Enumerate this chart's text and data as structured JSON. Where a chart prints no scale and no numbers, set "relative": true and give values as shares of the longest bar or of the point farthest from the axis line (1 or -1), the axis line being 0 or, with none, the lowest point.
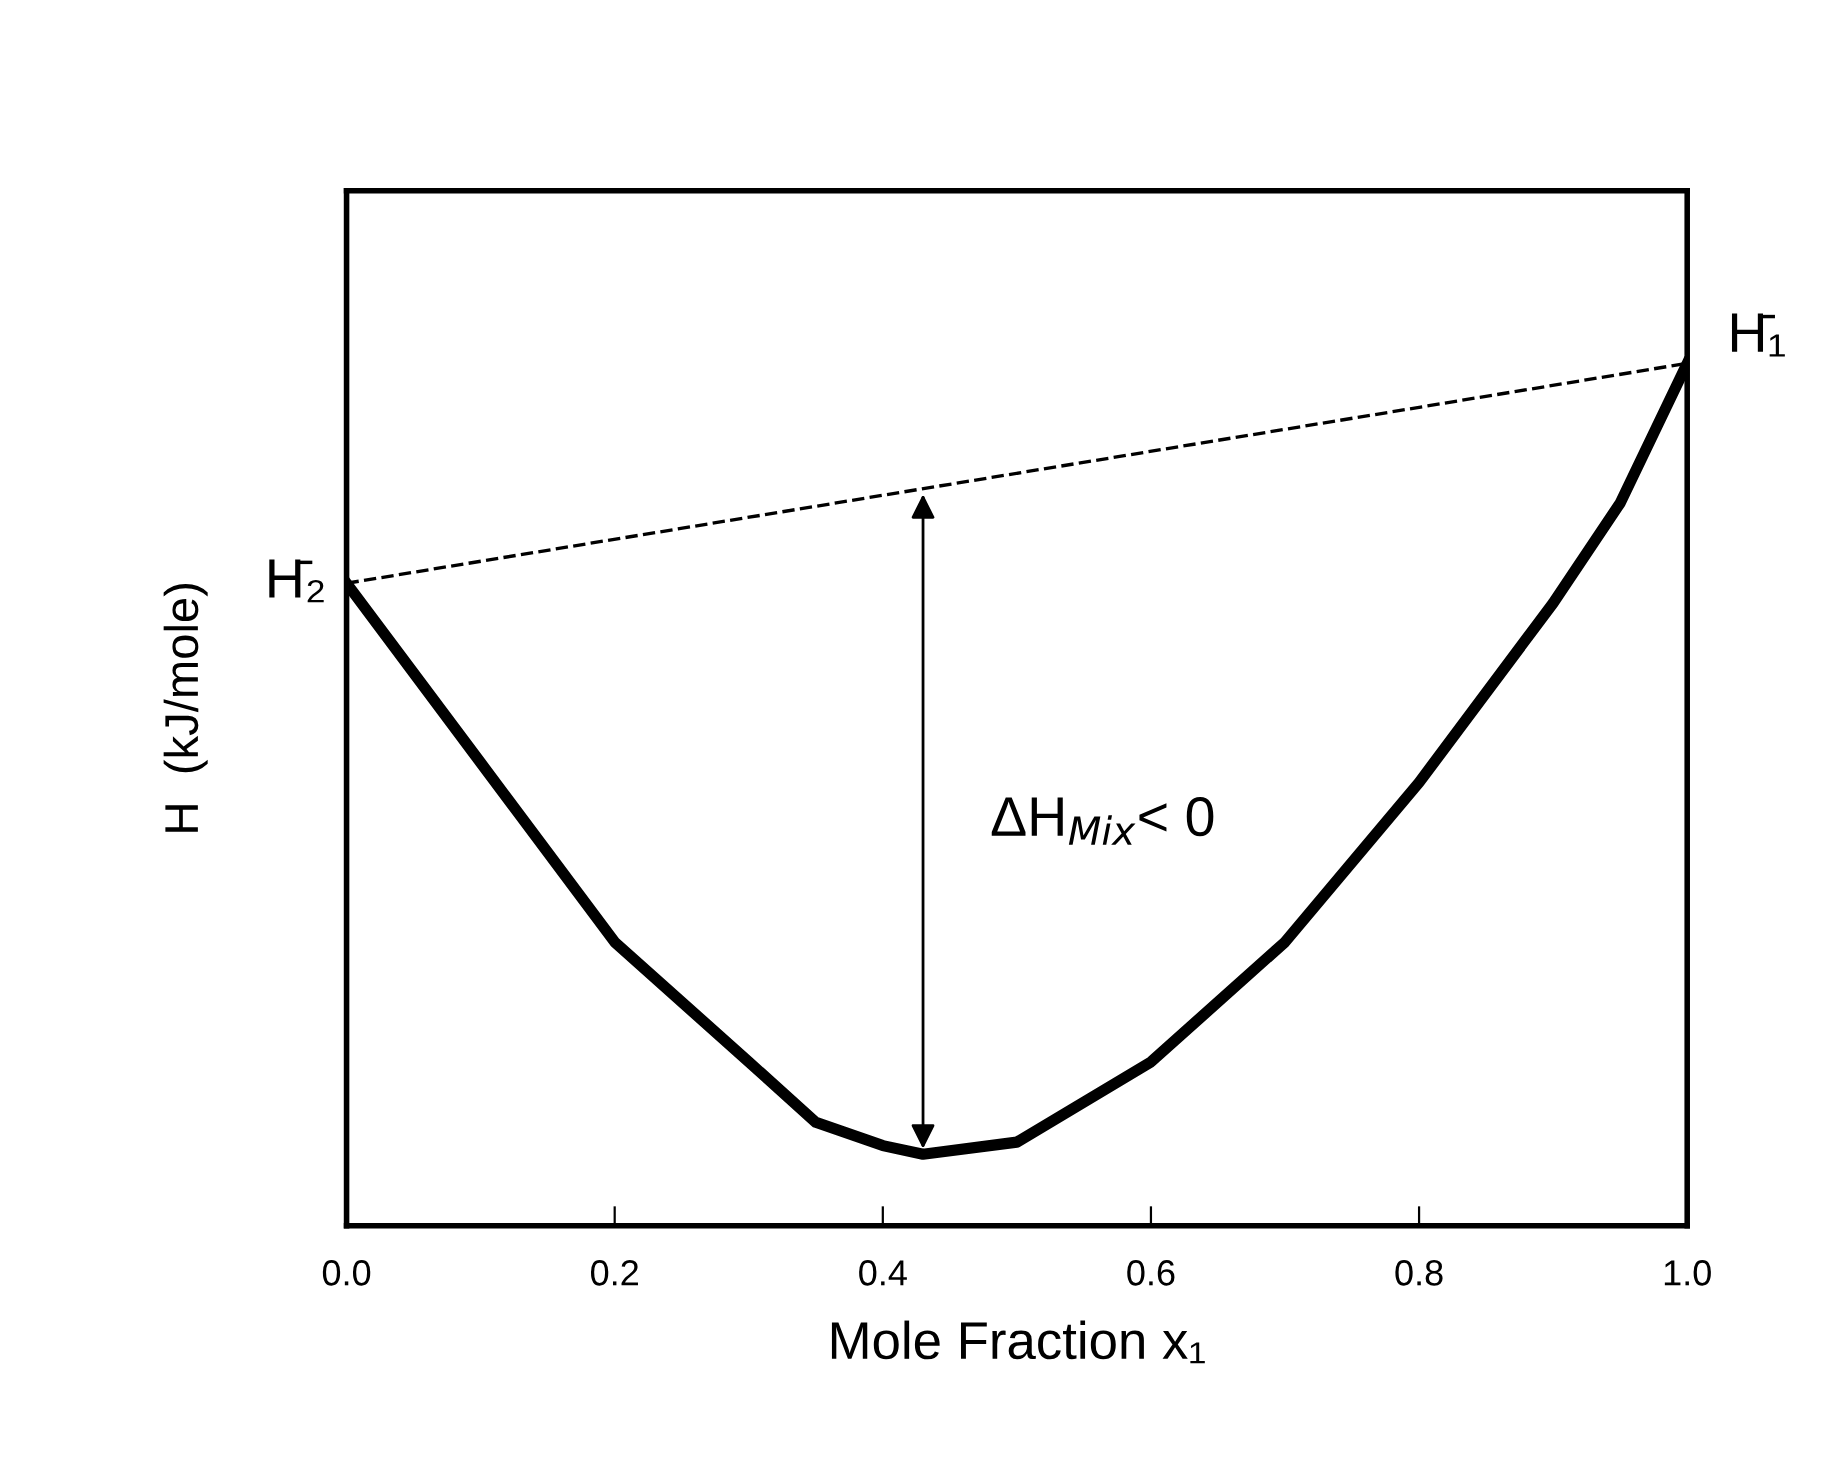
{
  "chart_data": {
    "type": "line",
    "relative": true,
    "xlabel": "Mole Fraction x₁",
    "ylabel": "H  (kJ/mole)",
    "xlim": [
      0,
      1
    ],
    "xticks": [
      {
        "value": 0,
        "label": "0.0"
      },
      {
        "value": 0.2,
        "label": "0.2"
      },
      {
        "value": 0.4,
        "label": "0.4"
      },
      {
        "value": 0.6,
        "label": "0.6"
      },
      {
        "value": 0.8,
        "label": "0.8"
      },
      {
        "value": 1,
        "label": "1.0"
      }
    ],
    "tick_labels": "x",
    "grid": false,
    "series": [
      {
        "color": "#000000",
        "line_style": "solid",
        "x": [
          0,
          0.1,
          0.2,
          0.3,
          0.35,
          0.4,
          0.43,
          0.5,
          0.6,
          0.7,
          0.8,
          0.9,
          0.95,
          1
        ],
        "values": [
          0.745,
          0.537,
          0.329,
          0.19,
          0.12,
          0.093,
          0.083,
          0.097,
          0.19,
          0.329,
          0.514,
          0.722,
          0.838,
          1
        ]
      },
      {
        "color": "#000000",
        "line_style": "dashed",
        "x": [
          0,
          1
        ],
        "values": [
          0.745,
          1
        ]
      }
    ],
    "annotations": [
      {
        "text": "H̄₂",
        "x": 0,
        "y": 0.745
      },
      {
        "text": "H̄₁",
        "x": 1,
        "y": 1
      },
      "ΔH$_{Mix}$< 0"
    ]
  }
}
